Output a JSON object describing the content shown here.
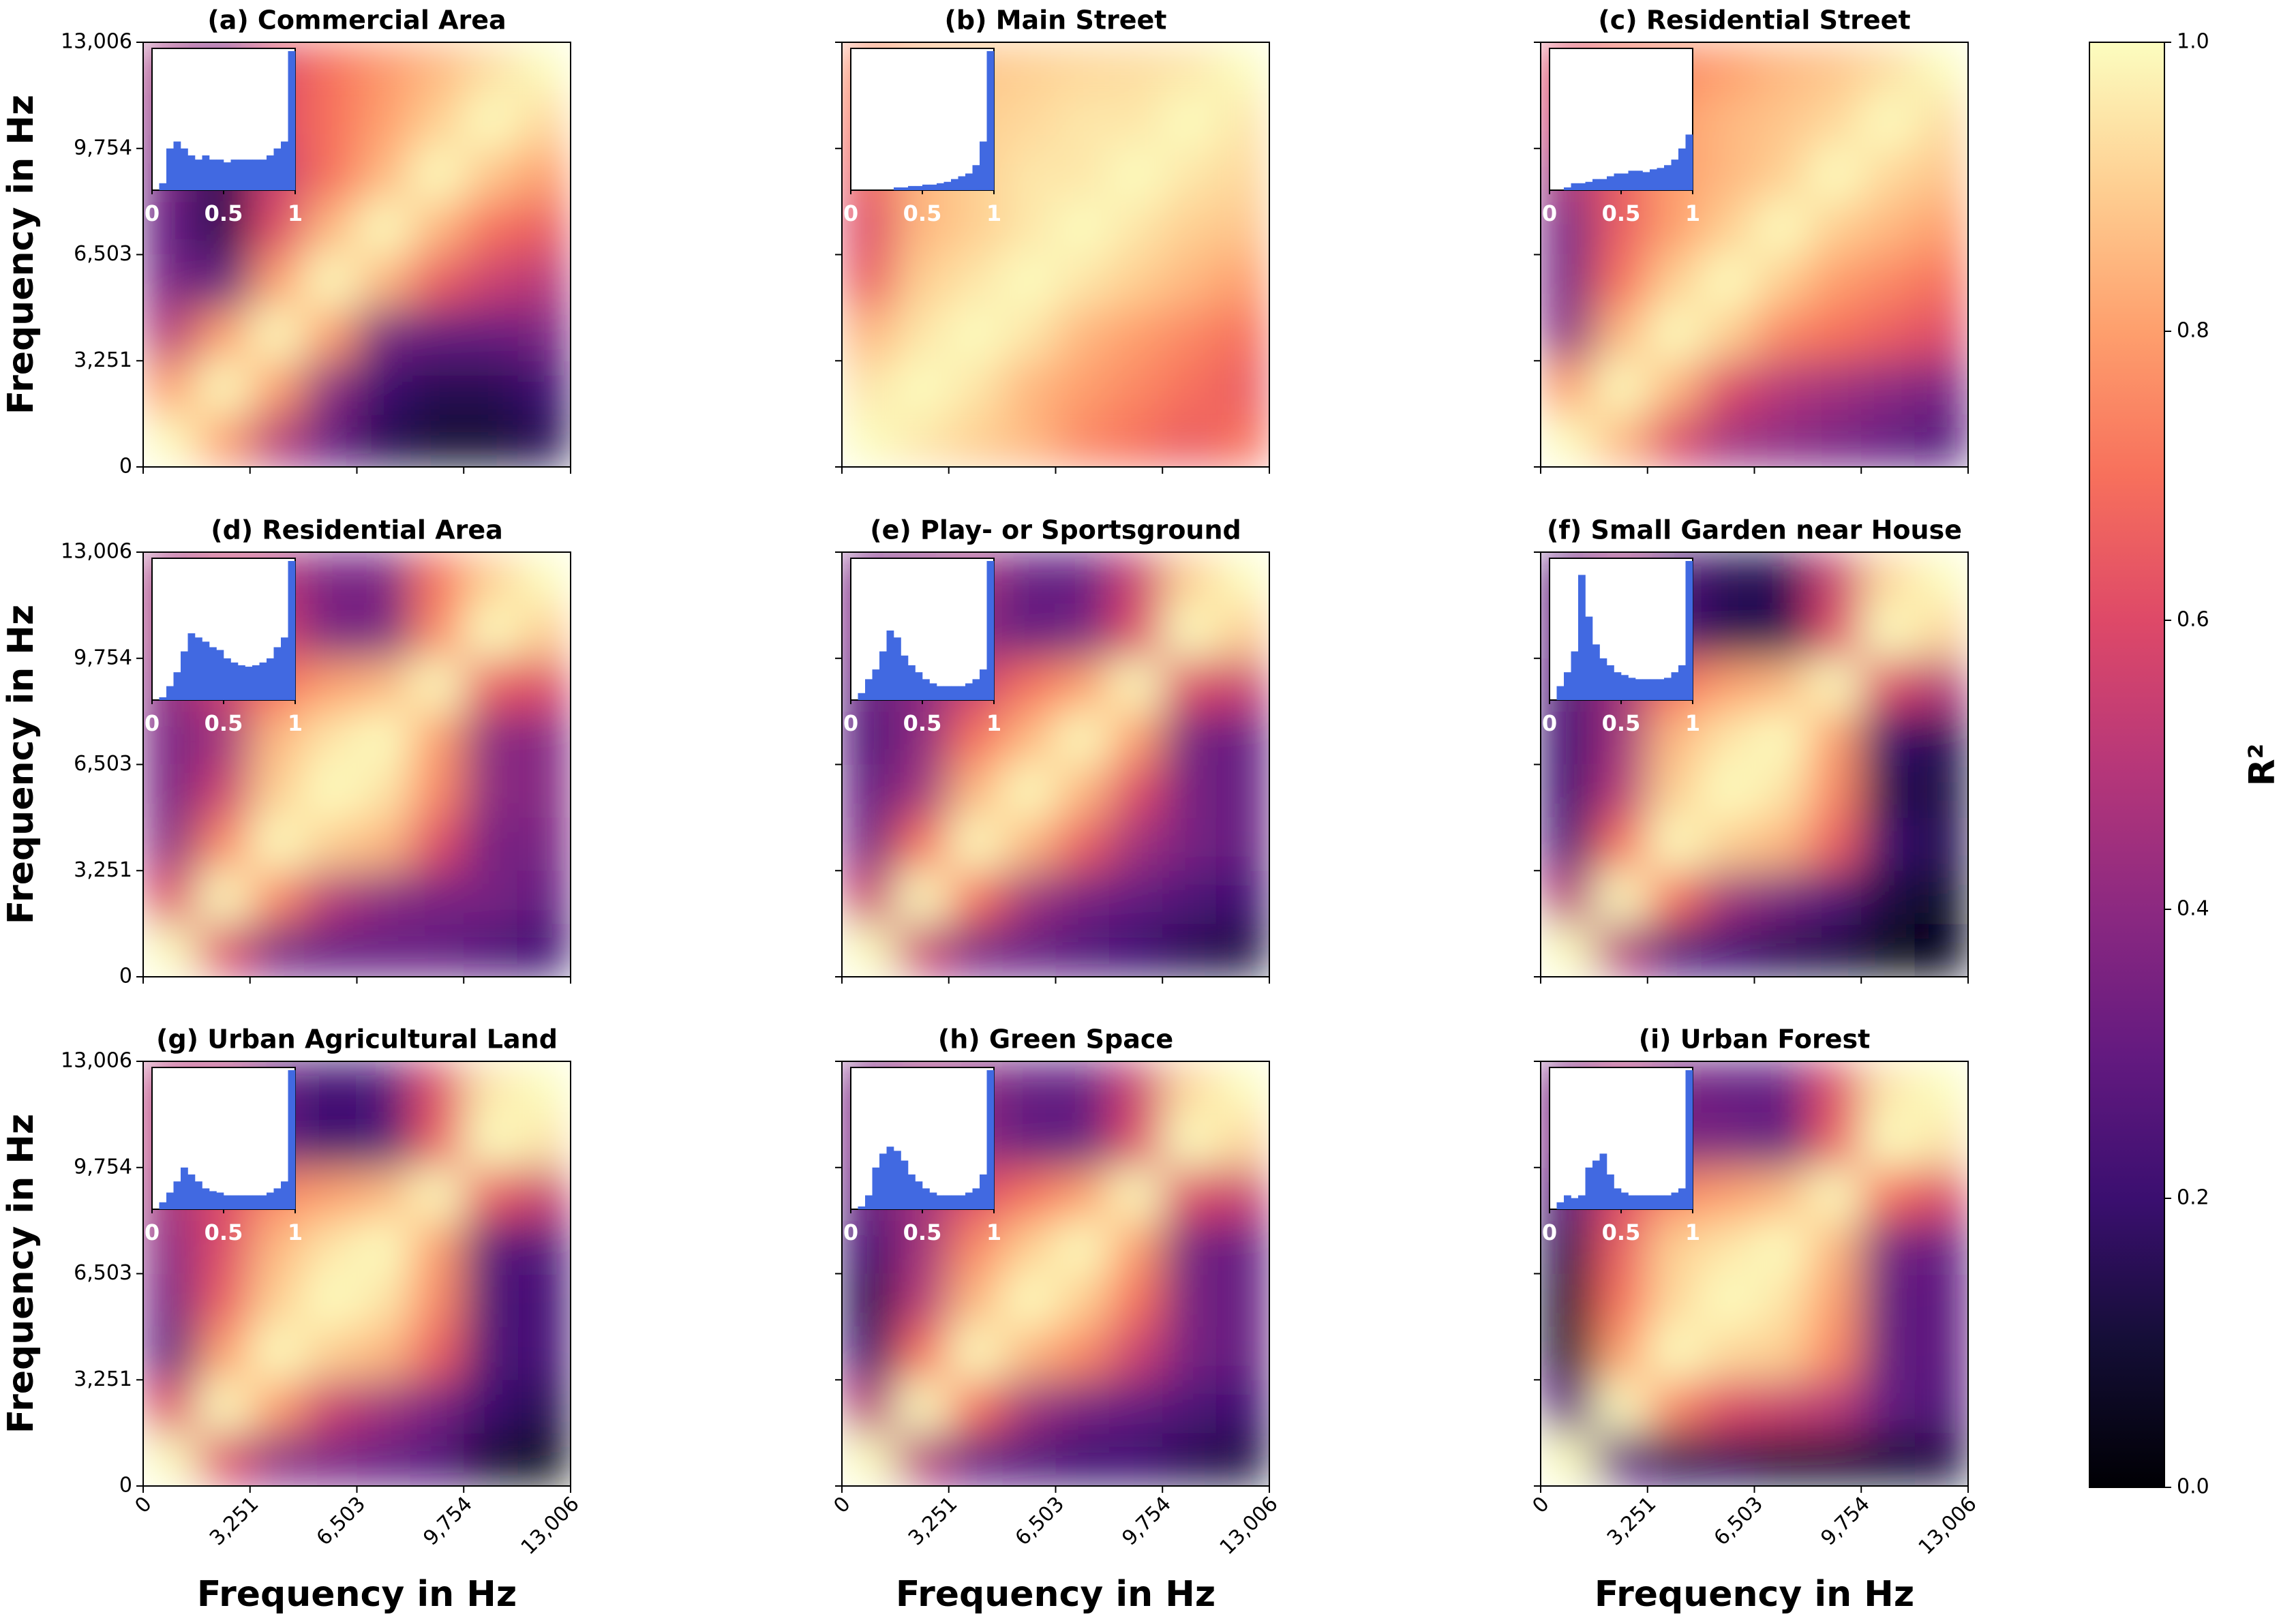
{
  "chart_data": {
    "type": "heatmap",
    "xlabel": "Frequency in Hz",
    "ylabel": "Frequency in Hz",
    "xlim": [
      0,
      13006
    ],
    "ylim": [
      0,
      13006
    ],
    "xticks": [
      0,
      {
        "value": 3251,
        "label": "3,251"
      },
      {
        "value": 6503,
        "label": "6,503"
      },
      {
        "value": 9754,
        "label": "9,754"
      },
      {
        "value": 13006,
        "label": "13,006"
      }
    ],
    "yticks": [
      0,
      {
        "value": 3251,
        "label": "3,251"
      },
      {
        "value": 6503,
        "label": "6,503"
      },
      {
        "value": 9754,
        "label": "9,754"
      },
      {
        "value": 13006,
        "label": "13,006"
      }
    ],
    "colormap": "magma",
    "colorbar": {
      "label": "R²",
      "lim": [
        0,
        1
      ],
      "ticks": [
        {
          "value": 0,
          "label": "0.0"
        },
        {
          "value": 0.2,
          "label": "0.2"
        },
        {
          "value": 0.4,
          "label": "0.4"
        },
        {
          "value": 0.6,
          "label": "0.6"
        },
        {
          "value": 0.8,
          "label": "0.8"
        },
        {
          "value": 1,
          "label": "1.0"
        }
      ]
    },
    "inset": {
      "xlim": [
        0,
        1
      ],
      "xticks": [
        0,
        0.5,
        1
      ],
      "color": "#4169e1",
      "bins": [
        0,
        0.05,
        0.1,
        0.15,
        0.2,
        0.25,
        0.3,
        0.35,
        0.4,
        0.45,
        0.5,
        0.55,
        0.6,
        0.65,
        0.7,
        0.75,
        0.8,
        0.85,
        0.9,
        0.95,
        1
      ]
    },
    "panels": [
      {
        "title": "(a) Commercial Area",
        "z": [
          [
            1,
            0.8,
            0.5,
            0.3,
            0.15,
            0.1,
            0.1,
            0.15
          ],
          [
            0.8,
            1,
            0.8,
            0.4,
            0.2,
            0.15,
            0.15,
            0.2
          ],
          [
            0.5,
            0.8,
            1,
            0.8,
            0.35,
            0.3,
            0.3,
            0.35
          ],
          [
            0.35,
            0.3,
            0.8,
            1,
            0.85,
            0.65,
            0.55,
            0.5
          ],
          [
            0.3,
            0.15,
            0.6,
            0.85,
            1,
            0.85,
            0.7,
            0.65
          ],
          [
            0.35,
            0.15,
            0.55,
            0.7,
            0.85,
            1,
            0.88,
            0.8
          ],
          [
            0.4,
            0.25,
            0.6,
            0.7,
            0.8,
            0.9,
            1,
            0.92
          ],
          [
            0.45,
            0.35,
            0.6,
            0.7,
            0.78,
            0.85,
            0.93,
            1
          ]
        ],
        "hist": [
          0,
          0.05,
          0.3,
          0.35,
          0.3,
          0.25,
          0.22,
          0.25,
          0.22,
          0.22,
          0.2,
          0.22,
          0.22,
          0.22,
          0.22,
          0.22,
          0.25,
          0.3,
          0.35,
          1
        ]
      },
      {
        "title": "(b) Main Street",
        "z": [
          [
            1,
            0.95,
            0.9,
            0.85,
            0.75,
            0.7,
            0.65,
            0.7
          ],
          [
            0.95,
            1,
            0.95,
            0.85,
            0.8,
            0.75,
            0.7,
            0.65
          ],
          [
            0.85,
            0.95,
            1,
            0.95,
            0.85,
            0.8,
            0.75,
            0.7
          ],
          [
            0.65,
            0.9,
            0.95,
            1,
            0.95,
            0.9,
            0.85,
            0.8
          ],
          [
            0.6,
            0.85,
            0.9,
            0.95,
            1,
            0.95,
            0.9,
            0.88
          ],
          [
            0.65,
            0.85,
            0.9,
            0.95,
            0.95,
            1,
            0.95,
            0.92
          ],
          [
            0.7,
            0.85,
            0.9,
            0.92,
            0.95,
            0.95,
            1,
            0.95
          ],
          [
            0.75,
            0.85,
            0.88,
            0.9,
            0.92,
            0.93,
            0.95,
            1
          ]
        ],
        "hist": [
          0,
          0,
          0,
          0,
          0,
          0,
          0.02,
          0.02,
          0.03,
          0.03,
          0.04,
          0.04,
          0.05,
          0.06,
          0.08,
          0.1,
          0.12,
          0.18,
          0.35,
          1
        ]
      },
      {
        "title": "(c) Residential Street",
        "z": [
          [
            1,
            0.85,
            0.6,
            0.45,
            0.4,
            0.35,
            0.3,
            0.25
          ],
          [
            0.8,
            1,
            0.85,
            0.6,
            0.5,
            0.45,
            0.4,
            0.35
          ],
          [
            0.4,
            0.85,
            1,
            0.9,
            0.75,
            0.7,
            0.65,
            0.6
          ],
          [
            0.35,
            0.7,
            0.9,
            1,
            0.9,
            0.8,
            0.75,
            0.7
          ],
          [
            0.35,
            0.65,
            0.8,
            0.9,
            1,
            0.9,
            0.85,
            0.8
          ],
          [
            0.45,
            0.65,
            0.8,
            0.85,
            0.9,
            1,
            0.92,
            0.88
          ],
          [
            0.55,
            0.7,
            0.8,
            0.85,
            0.88,
            0.92,
            1,
            0.93
          ],
          [
            0.6,
            0.7,
            0.75,
            0.8,
            0.85,
            0.88,
            0.93,
            1
          ]
        ],
        "hist": [
          0,
          0,
          0.02,
          0.05,
          0.05,
          0.06,
          0.08,
          0.08,
          0.1,
          0.12,
          0.12,
          0.14,
          0.14,
          0.13,
          0.15,
          0.16,
          0.18,
          0.22,
          0.3,
          0.4
        ]
      },
      {
        "title": "(d) Residential Area",
        "z": [
          [
            1,
            0.6,
            0.35,
            0.3,
            0.3,
            0.3,
            0.25,
            0.2
          ],
          [
            0.6,
            1,
            0.75,
            0.5,
            0.4,
            0.35,
            0.35,
            0.3
          ],
          [
            0.4,
            0.75,
            1,
            0.9,
            0.85,
            0.6,
            0.35,
            0.35
          ],
          [
            0.35,
            0.55,
            0.9,
            1,
            0.95,
            0.75,
            0.4,
            0.38
          ],
          [
            0.35,
            0.45,
            0.85,
            0.95,
            1,
            0.8,
            0.4,
            0.38
          ],
          [
            0.4,
            0.55,
            0.7,
            0.8,
            0.85,
            1,
            0.65,
            0.6
          ],
          [
            0.45,
            0.6,
            0.55,
            0.35,
            0.35,
            0.75,
            1,
            0.9
          ],
          [
            0.45,
            0.55,
            0.5,
            0.35,
            0.35,
            0.7,
            0.9,
            1
          ]
        ],
        "hist": [
          0,
          0.02,
          0.1,
          0.2,
          0.35,
          0.48,
          0.45,
          0.42,
          0.38,
          0.36,
          0.3,
          0.27,
          0.25,
          0.24,
          0.25,
          0.27,
          0.3,
          0.38,
          0.45,
          1
        ]
      },
      {
        "title": "(e) Play- or Sportsground",
        "z": [
          [
            1,
            0.55,
            0.35,
            0.3,
            0.25,
            0.2,
            0.15,
            0.12
          ],
          [
            0.55,
            1,
            0.7,
            0.45,
            0.35,
            0.3,
            0.25,
            0.2
          ],
          [
            0.35,
            0.7,
            1,
            0.85,
            0.65,
            0.45,
            0.35,
            0.3
          ],
          [
            0.3,
            0.45,
            0.85,
            1,
            0.85,
            0.6,
            0.35,
            0.3
          ],
          [
            0.25,
            0.4,
            0.7,
            0.85,
            1,
            0.8,
            0.35,
            0.3
          ],
          [
            0.3,
            0.4,
            0.55,
            0.7,
            0.8,
            1,
            0.6,
            0.55
          ],
          [
            0.35,
            0.4,
            0.4,
            0.3,
            0.35,
            0.6,
            1,
            0.9
          ],
          [
            0.35,
            0.4,
            0.45,
            0.3,
            0.3,
            0.55,
            0.9,
            1
          ]
        ],
        "hist": [
          0,
          0.05,
          0.15,
          0.22,
          0.35,
          0.5,
          0.45,
          0.32,
          0.25,
          0.2,
          0.15,
          0.12,
          0.1,
          0.1,
          0.1,
          0.1,
          0.12,
          0.15,
          0.22,
          1
        ]
      },
      {
        "title": "(f) Small Garden near House",
        "z": [
          [
            1,
            0.5,
            0.25,
            0.2,
            0.15,
            0.12,
            0.05,
            0.03
          ],
          [
            0.5,
            1,
            0.7,
            0.45,
            0.35,
            0.25,
            0.12,
            0.08
          ],
          [
            0.25,
            0.7,
            1,
            0.9,
            0.85,
            0.65,
            0.2,
            0.15
          ],
          [
            0.2,
            0.5,
            0.9,
            1,
            0.95,
            0.75,
            0.15,
            0.12
          ],
          [
            0.2,
            0.45,
            0.85,
            0.95,
            1,
            0.8,
            0.2,
            0.15
          ],
          [
            0.25,
            0.45,
            0.7,
            0.8,
            0.85,
            1,
            0.6,
            0.5
          ],
          [
            0.3,
            0.5,
            0.25,
            0.15,
            0.15,
            0.6,
            1,
            0.92
          ],
          [
            0.3,
            0.45,
            0.25,
            0.15,
            0.15,
            0.55,
            0.92,
            1
          ]
        ],
        "hist": [
          0,
          0.1,
          0.2,
          0.35,
          0.9,
          0.6,
          0.4,
          0.3,
          0.25,
          0.2,
          0.18,
          0.16,
          0.15,
          0.15,
          0.15,
          0.15,
          0.16,
          0.2,
          0.25,
          1
        ]
      },
      {
        "title": "(g) Urban Agricultural Land",
        "z": [
          [
            1,
            0.6,
            0.4,
            0.35,
            0.3,
            0.25,
            0.1,
            0.05
          ],
          [
            0.6,
            1,
            0.8,
            0.55,
            0.45,
            0.35,
            0.2,
            0.15
          ],
          [
            0.3,
            0.8,
            1,
            0.9,
            0.85,
            0.65,
            0.25,
            0.22
          ],
          [
            0.35,
            0.65,
            0.9,
            1,
            0.95,
            0.75,
            0.25,
            0.22
          ],
          [
            0.4,
            0.6,
            0.85,
            0.95,
            1,
            0.8,
            0.28,
            0.25
          ],
          [
            0.45,
            0.6,
            0.75,
            0.8,
            0.85,
            1,
            0.65,
            0.55
          ],
          [
            0.5,
            0.55,
            0.3,
            0.2,
            0.25,
            0.65,
            1,
            0.95
          ],
          [
            0.5,
            0.5,
            0.3,
            0.2,
            0.25,
            0.6,
            0.95,
            1
          ]
        ],
        "hist": [
          0,
          0.05,
          0.12,
          0.2,
          0.3,
          0.25,
          0.2,
          0.15,
          0.13,
          0.12,
          0.1,
          0.1,
          0.1,
          0.1,
          0.1,
          0.1,
          0.12,
          0.15,
          0.2,
          1
        ]
      },
      {
        "title": "(h) Green Space",
        "z": [
          [
            1,
            0.5,
            0.3,
            0.25,
            0.2,
            0.2,
            0.15,
            0.12
          ],
          [
            0.5,
            1,
            0.7,
            0.45,
            0.35,
            0.3,
            0.25,
            0.2
          ],
          [
            0.2,
            0.7,
            1,
            0.85,
            0.75,
            0.55,
            0.35,
            0.3
          ],
          [
            0.15,
            0.5,
            0.85,
            1,
            0.9,
            0.7,
            0.35,
            0.3
          ],
          [
            0.2,
            0.45,
            0.75,
            0.9,
            1,
            0.8,
            0.35,
            0.3
          ],
          [
            0.3,
            0.45,
            0.6,
            0.7,
            0.8,
            1,
            0.6,
            0.55
          ],
          [
            0.35,
            0.45,
            0.4,
            0.3,
            0.3,
            0.6,
            1,
            0.92
          ],
          [
            0.35,
            0.45,
            0.4,
            0.3,
            0.3,
            0.55,
            0.92,
            1
          ]
        ],
        "hist": [
          0,
          0.02,
          0.1,
          0.3,
          0.4,
          0.45,
          0.42,
          0.35,
          0.25,
          0.2,
          0.15,
          0.12,
          0.1,
          0.1,
          0.1,
          0.1,
          0.12,
          0.15,
          0.25,
          1
        ]
      },
      {
        "title": "(i) Urban Forest",
        "z": [
          [
            1,
            0.3,
            0.15,
            0.15,
            0.1,
            0.1,
            0.1,
            0.12
          ],
          [
            0.3,
            1,
            0.75,
            0.6,
            0.55,
            0.5,
            0.3,
            0.25
          ],
          [
            0.1,
            0.8,
            1,
            0.92,
            0.9,
            0.75,
            0.3,
            0.28
          ],
          [
            0.1,
            0.7,
            0.92,
            1,
            0.95,
            0.8,
            0.3,
            0.28
          ],
          [
            0.15,
            0.65,
            0.9,
            0.95,
            1,
            0.85,
            0.35,
            0.3
          ],
          [
            0.25,
            0.6,
            0.75,
            0.8,
            0.85,
            1,
            0.7,
            0.6
          ],
          [
            0.35,
            0.55,
            0.35,
            0.35,
            0.3,
            0.65,
            1,
            0.95
          ],
          [
            0.35,
            0.5,
            0.35,
            0.3,
            0.3,
            0.6,
            0.95,
            1
          ]
        ],
        "hist": [
          0,
          0.05,
          0.1,
          0.08,
          0.1,
          0.3,
          0.35,
          0.4,
          0.25,
          0.15,
          0.12,
          0.1,
          0.1,
          0.1,
          0.1,
          0.1,
          0.1,
          0.12,
          0.15,
          1
        ]
      }
    ]
  }
}
